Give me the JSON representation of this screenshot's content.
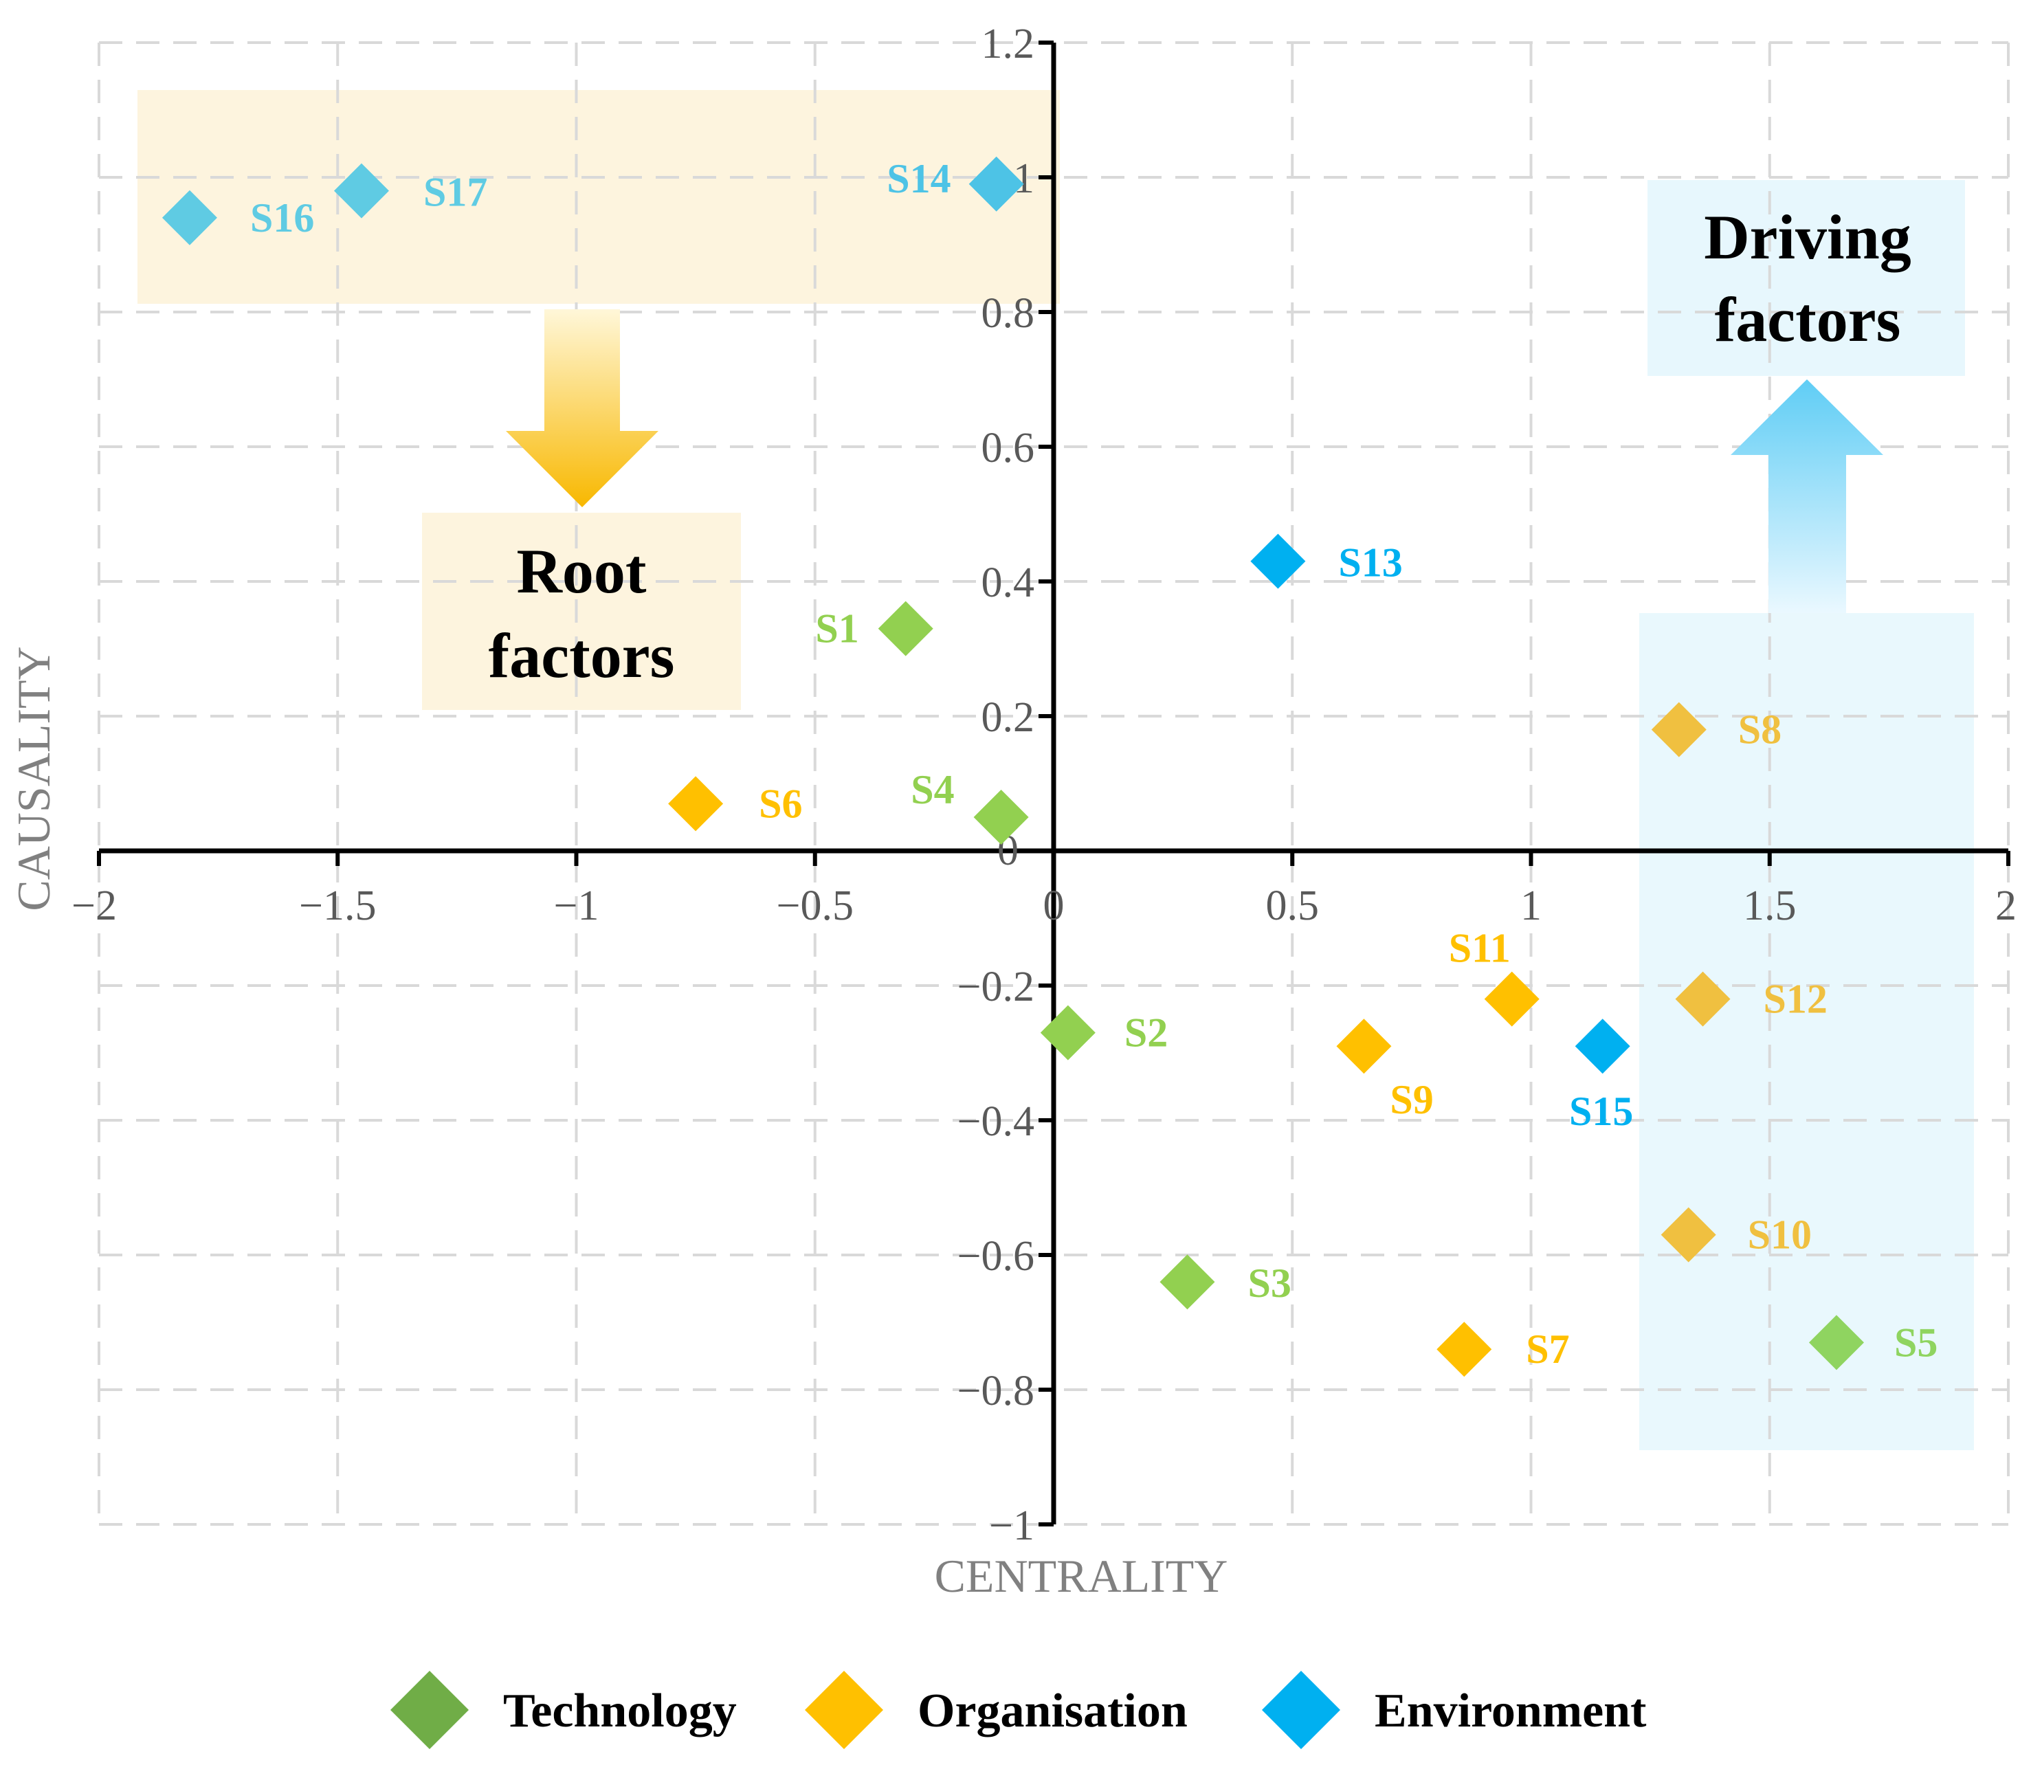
{
  "chart_data": {
    "type": "scatter",
    "xlabel": "CENTRALITY",
    "ylabel": "CAUSALITY",
    "xlim": [
      -2,
      2
    ],
    "ylim": [
      -1,
      1.2
    ],
    "x_ticks": [
      {
        "value": -2,
        "label": "−2"
      },
      {
        "value": -1.5,
        "label": "−1.5"
      },
      {
        "value": -1,
        "label": "−1"
      },
      {
        "value": -0.5,
        "label": "−0.5"
      },
      {
        "value": 0,
        "label": "0"
      },
      {
        "value": 0.5,
        "label": "0.5"
      },
      {
        "value": 1,
        "label": "1"
      },
      {
        "value": 1.5,
        "label": "1.5"
      },
      {
        "value": 2,
        "label": "2"
      }
    ],
    "y_ticks": [
      {
        "value": 1.2,
        "label": "1.2"
      },
      {
        "value": 1,
        "label": "1"
      },
      {
        "value": 0.8,
        "label": "0.8"
      },
      {
        "value": 0.6,
        "label": "0.6"
      },
      {
        "value": 0.4,
        "label": "0.4"
      },
      {
        "value": 0.2,
        "label": "0.2"
      },
      {
        "value": 0,
        "label": "0"
      },
      {
        "value": -0.2,
        "label": "−0.2"
      },
      {
        "value": -0.4,
        "label": "−0.4"
      },
      {
        "value": -0.6,
        "label": "−0.6"
      },
      {
        "value": -0.8,
        "label": "−0.8"
      },
      {
        "value": -1,
        "label": "−1"
      }
    ],
    "grid": true,
    "series": [
      {
        "name": "Technology",
        "color": "#92d050",
        "points": [
          {
            "label": "S1",
            "x": -0.31,
            "y": 0.33
          },
          {
            "label": "S2",
            "x": 0.03,
            "y": -0.27
          },
          {
            "label": "S3",
            "x": 0.28,
            "y": -0.64
          },
          {
            "label": "S4",
            "x": -0.11,
            "y": 0.05
          },
          {
            "label": "S5",
            "x": 1.64,
            "y": -0.73
          }
        ]
      },
      {
        "name": "Organisation",
        "color": "#ffc000",
        "points": [
          {
            "label": "S6",
            "x": -0.75,
            "y": 0.07
          },
          {
            "label": "S7",
            "x": 0.86,
            "y": -0.74
          },
          {
            "label": "S8",
            "x": 1.31,
            "y": 0.18
          },
          {
            "label": "S9",
            "x": 0.65,
            "y": -0.29
          },
          {
            "label": "S10",
            "x": 1.33,
            "y": -0.57
          },
          {
            "label": "S11",
            "x": 0.96,
            "y": -0.22
          },
          {
            "label": "S12",
            "x": 1.36,
            "y": -0.22
          }
        ]
      },
      {
        "name": "Environment",
        "color": "#00b0f0",
        "points": [
          {
            "label": "S13",
            "x": 0.47,
            "y": 0.43
          },
          {
            "label": "S14",
            "x": -0.12,
            "y": 0.99
          },
          {
            "label": "S15",
            "x": 1.15,
            "y": -0.29
          },
          {
            "label": "S16",
            "x": -1.81,
            "y": 0.94
          },
          {
            "label": "S17",
            "x": -1.45,
            "y": 0.98
          }
        ]
      }
    ],
    "annotations": [
      {
        "text": "Root",
        "group": "root"
      },
      {
        "text": "factors",
        "group": "root"
      },
      {
        "text": "Driving",
        "group": "driving"
      },
      {
        "text": "factors",
        "group": "driving"
      }
    ],
    "legend": {
      "position": "bottom",
      "items": [
        {
          "name": "Technology",
          "color": "#70ad47"
        },
        {
          "name": "Organisation",
          "color": "#ffc000"
        },
        {
          "name": "Environment",
          "color": "#00b0f0"
        }
      ]
    }
  }
}
